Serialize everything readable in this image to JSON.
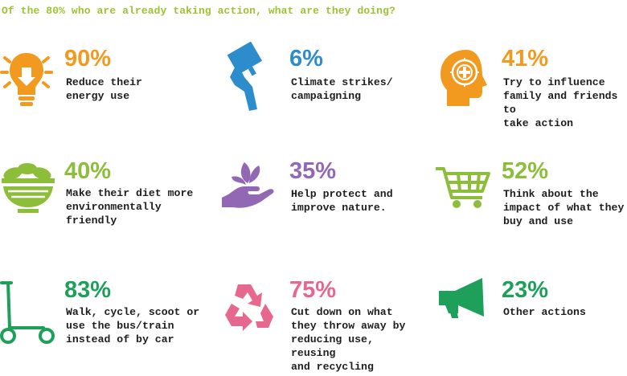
{
  "header": {
    "title": "Of the 80% who are already taking action, what are they doing?"
  },
  "colors": {
    "orange": "#f29a1f",
    "blue": "#2d8ccc",
    "green": "#8cbe3a",
    "purple": "#9267b4",
    "teal": "#1fa05a",
    "pink": "#e6688f"
  },
  "items": [
    {
      "percent": "90%",
      "text": "Reduce their\nenergy use",
      "icon": "lightbulb-icon",
      "color": "#f29a1f"
    },
    {
      "percent": "6%",
      "text": "Climate strikes/\ncampaigning",
      "icon": "placard-icon",
      "color": "#2d8ccc"
    },
    {
      "percent": "41%",
      "text": "Try to influence\nfamily and friends to\ntake action",
      "icon": "head-brain-icon",
      "color": "#f29a1f"
    },
    {
      "percent": "40%",
      "text": "Make their diet more\nenvironmentally\nfriendly",
      "icon": "salad-bowl-icon",
      "color": "#8cbe3a"
    },
    {
      "percent": "35%",
      "text": "Help protect and\nimprove nature.",
      "icon": "hand-leaf-icon",
      "color": "#9267b4"
    },
    {
      "percent": "52%",
      "text": "Think about the\nimpact of what they\nbuy and use",
      "icon": "shopping-cart-icon",
      "color": "#8cbe3a"
    },
    {
      "percent": "83%",
      "text": "Walk, cycle, scoot or\nuse the bus/train\ninstead of by car",
      "icon": "scooter-icon",
      "color": "#1fa05a"
    },
    {
      "percent": "75%",
      "text": "Cut down on what\nthey throw away by\nreducing use, reusing\nand recycling",
      "icon": "recycle-icon",
      "color": "#e6688f"
    },
    {
      "percent": "23%",
      "text": "Other actions",
      "icon": "megaphone-icon",
      "color": "#1fa05a"
    }
  ]
}
